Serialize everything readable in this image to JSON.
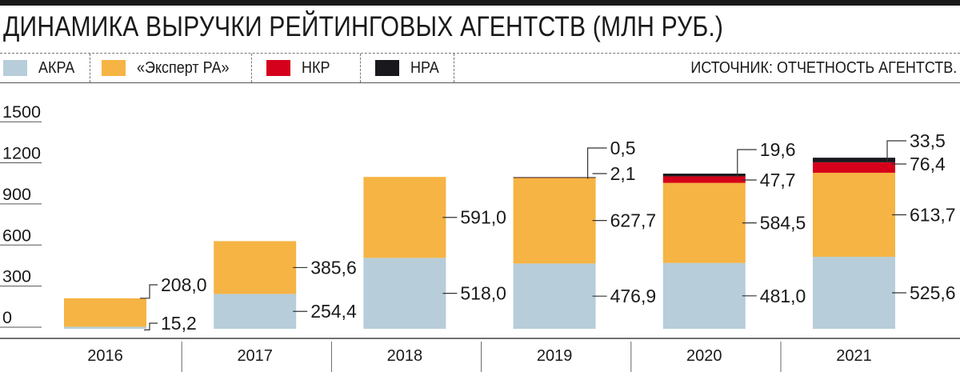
{
  "title": "ДИНАМИКА ВЫРУЧКИ РЕЙТИНГОВЫХ АГЕНТСТВ (МЛН РУБ.)",
  "source": "ИСТОЧНИК: ОТЧЕТНОСТЬ АГЕНТСТВ.",
  "chart_data": {
    "type": "bar",
    "stacked": true,
    "title": "ДИНАМИКА ВЫРУЧКИ РЕЙТИНГОВЫХ АГЕНТСТВ (МЛН РУБ.)",
    "categories": [
      "2016",
      "2017",
      "2018",
      "2019",
      "2020",
      "2021"
    ],
    "series": [
      {
        "name": "АКРА",
        "color": "#b7cdd9",
        "values": [
          15.2,
          254.4,
          518.0,
          476.9,
          481.0,
          525.6
        ],
        "labels": [
          "15,2",
          "254,4",
          "518,0",
          "476,9",
          "481,0",
          "525,6"
        ]
      },
      {
        "name": "«Эксперт РА»",
        "color": "#f5b443",
        "values": [
          208.0,
          385.6,
          591.0,
          627.7,
          584.5,
          613.7
        ],
        "labels": [
          "208,0",
          "385,6",
          "591,0",
          "627,7",
          "584,5",
          "613,7"
        ]
      },
      {
        "name": "НКР",
        "color": "#d5001b",
        "values": [
          null,
          null,
          null,
          2.1,
          47.7,
          76.4
        ],
        "labels": [
          "",
          "",
          "",
          "2,1",
          "47,7",
          "76,4"
        ]
      },
      {
        "name": "НРА",
        "color": "#18181d",
        "values": [
          null,
          null,
          null,
          0.5,
          19.6,
          33.5
        ],
        "labels": [
          "",
          "",
          "",
          "0,5",
          "19,6",
          "33,5"
        ]
      }
    ],
    "yticks": [
      "0",
      "300",
      "600",
      "900",
      "1200",
      "1500"
    ],
    "ylim": [
      0,
      1500
    ],
    "grid": false,
    "legend": "top"
  }
}
